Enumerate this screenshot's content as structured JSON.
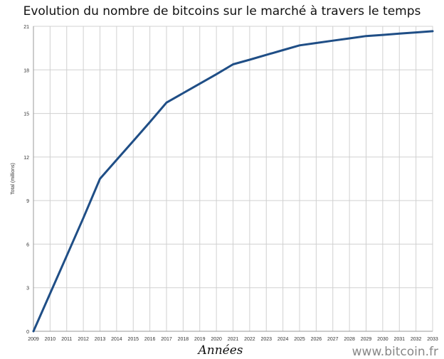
{
  "chart_data": {
    "type": "line",
    "title": "Evolution du nombre de bitcoins sur le marché à travers le temps",
    "xlabel": "Années",
    "ylabel": "Total (millions)",
    "x": [
      "2009",
      "2010",
      "2011",
      "2012",
      "2013",
      "2014",
      "2015",
      "2016",
      "2017",
      "2018",
      "2019",
      "2020",
      "2021",
      "2022",
      "2023",
      "2024",
      "2025",
      "2026",
      "2027",
      "2028",
      "2029",
      "2030",
      "2031",
      "2032",
      "2033"
    ],
    "series": [
      {
        "values": [
          0,
          2.6,
          5.2,
          7.8,
          10.5,
          11.8,
          13.1,
          14.4,
          15.75,
          16.4,
          17.05,
          17.7,
          18.38,
          18.7,
          19.03,
          19.36,
          19.69,
          19.85,
          20.01,
          20.17,
          20.33,
          20.41,
          20.5,
          20.58,
          20.66
        ]
      }
    ],
    "yticks": [
      0,
      3,
      6,
      9,
      12,
      15,
      18,
      21
    ],
    "ylim": [
      0,
      21
    ],
    "grid": true,
    "line_color": "#1f4e86",
    "grid_color": "#d0d0d0"
  },
  "watermark": "www.bitcoin.fr"
}
